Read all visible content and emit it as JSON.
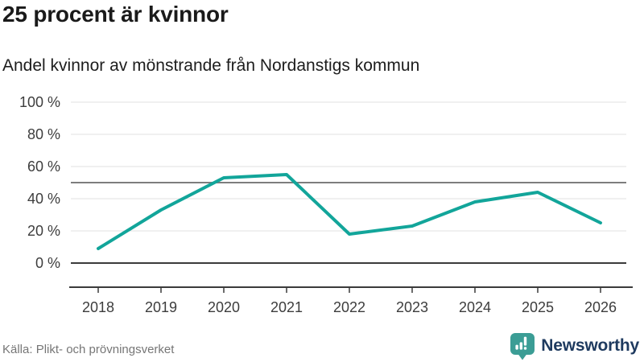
{
  "header": {
    "title": "25 procent är kvinnor",
    "subtitle": "Andel kvinnor av mönstrande från Nordanstigs kommun"
  },
  "chart_data": {
    "type": "line",
    "x": [
      "2018",
      "2019",
      "2020",
      "2021",
      "2022",
      "2023",
      "2024",
      "2025",
      "2026"
    ],
    "series": [
      {
        "name": "Andel kvinnor av mönstrande",
        "values": [
          9,
          33,
          53,
          55,
          18,
          23,
          38,
          44,
          25
        ]
      }
    ],
    "title": "25 procent är kvinnor",
    "subtitle": "Andel kvinnor av mönstrande från Nordanstigs kommun",
    "xlabel": "",
    "ylabel": "",
    "ylim": [
      0,
      100
    ],
    "yticks": [
      0,
      20,
      40,
      60,
      80,
      100
    ],
    "ytick_suffix": " %",
    "reference_line": 50,
    "grid": true,
    "legend": "none",
    "line_color": "#12A59A"
  },
  "footer": {
    "source": "Källa: Plikt- och prövningsverket",
    "brand": "Newsworthy"
  },
  "icons": {
    "logo": "bar-chart-speech-bubble-icon"
  },
  "colors": {
    "accent_teal": "#12A59A",
    "logo_teal": "#3B9D95",
    "brand_navy": "#1E3A5F",
    "grid": "#e0e0e0",
    "reference_line": "#7d7d7d",
    "axis": "#3b3b3b",
    "tick_text": "#3d3d3d",
    "source_text": "#767676"
  }
}
